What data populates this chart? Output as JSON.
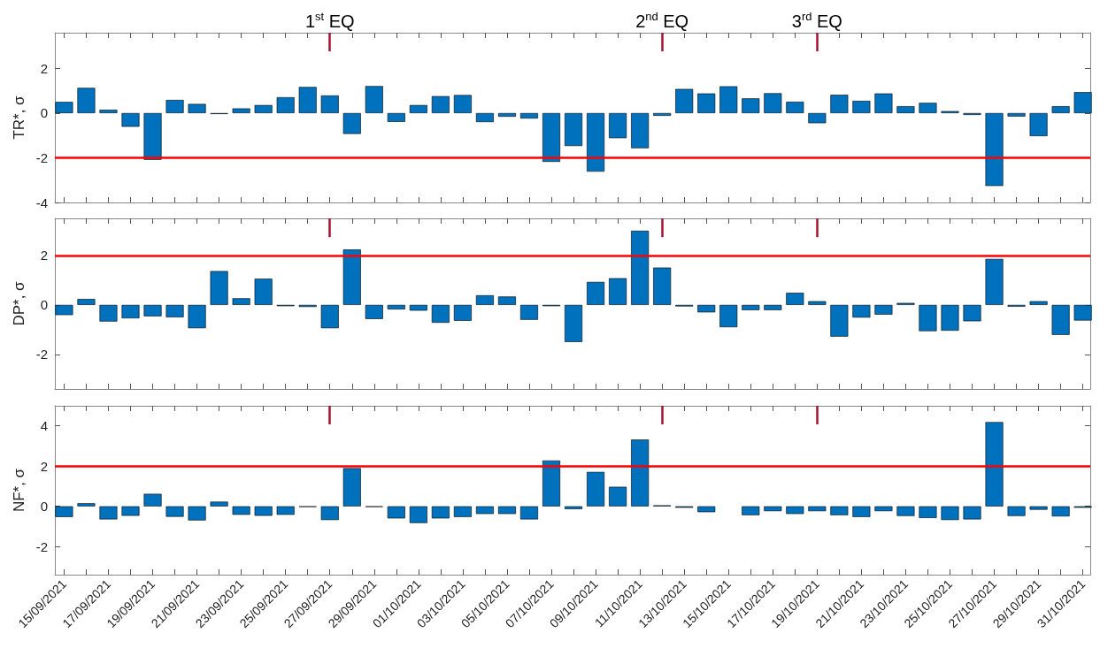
{
  "chart_data": [
    {
      "type": "bar",
      "ylabel": "TR*, σ",
      "ylim": [
        -4,
        3.6
      ],
      "yticks": [
        -4,
        -2,
        0,
        2
      ],
      "xlim": [
        "2021-09-14T14:00",
        "2021-10-31T08:00"
      ],
      "tick_labels": "y",
      "x": [
        "2021-09-15",
        "2021-09-16",
        "2021-09-17",
        "2021-09-18",
        "2021-09-19",
        "2021-09-20",
        "2021-09-21",
        "2021-09-22",
        "2021-09-23",
        "2021-09-24",
        "2021-09-25",
        "2021-09-26",
        "2021-09-27",
        "2021-09-28",
        "2021-09-29",
        "2021-09-30",
        "2021-10-01",
        "2021-10-02",
        "2021-10-03",
        "2021-10-04",
        "2021-10-05",
        "2021-10-06",
        "2021-10-07",
        "2021-10-08",
        "2021-10-09",
        "2021-10-10",
        "2021-10-11",
        "2021-10-12",
        "2021-10-13",
        "2021-10-14",
        "2021-10-15",
        "2021-10-16",
        "2021-10-17",
        "2021-10-18",
        "2021-10-19",
        "2021-10-20",
        "2021-10-21",
        "2021-10-22",
        "2021-10-23",
        "2021-10-24",
        "2021-10-25",
        "2021-10-26",
        "2021-10-27",
        "2021-10-28",
        "2021-10-29",
        "2021-10-30",
        "2021-10-31"
      ],
      "xticks": [
        {
          "value": "2021-09-15",
          "label": null
        },
        {
          "value": "2021-09-16",
          "label": null
        },
        {
          "value": "2021-09-17",
          "label": null
        },
        {
          "value": "2021-09-18",
          "label": null
        },
        {
          "value": "2021-09-19",
          "label": null
        },
        {
          "value": "2021-09-20",
          "label": null
        },
        {
          "value": "2021-09-21",
          "label": null
        },
        {
          "value": "2021-09-22",
          "label": null
        },
        {
          "value": "2021-09-23",
          "label": null
        },
        {
          "value": "2021-09-24",
          "label": null
        },
        {
          "value": "2021-09-25",
          "label": null
        },
        {
          "value": "2021-09-26",
          "label": null
        },
        {
          "value": "2021-09-27",
          "label": null
        },
        {
          "value": "2021-09-28",
          "label": null
        },
        {
          "value": "2021-09-29",
          "label": null
        },
        {
          "value": "2021-09-30",
          "label": null
        },
        {
          "value": "2021-10-01",
          "label": null
        },
        {
          "value": "2021-10-02",
          "label": null
        },
        {
          "value": "2021-10-03",
          "label": null
        },
        {
          "value": "2021-10-04",
          "label": null
        },
        {
          "value": "2021-10-05",
          "label": null
        },
        {
          "value": "2021-10-06",
          "label": null
        },
        {
          "value": "2021-10-07",
          "label": null
        },
        {
          "value": "2021-10-08",
          "label": null
        },
        {
          "value": "2021-10-09",
          "label": null
        },
        {
          "value": "2021-10-10",
          "label": null
        },
        {
          "value": "2021-10-11",
          "label": null
        },
        {
          "value": "2021-10-12",
          "label": null
        },
        {
          "value": "2021-10-13",
          "label": null
        },
        {
          "value": "2021-10-14",
          "label": null
        },
        {
          "value": "2021-10-15",
          "label": null
        },
        {
          "value": "2021-10-16",
          "label": null
        },
        {
          "value": "2021-10-17",
          "label": null
        },
        {
          "value": "2021-10-18",
          "label": null
        },
        {
          "value": "2021-10-19",
          "label": null
        },
        {
          "value": "2021-10-20",
          "label": null
        },
        {
          "value": "2021-10-21",
          "label": null
        },
        {
          "value": "2021-10-22",
          "label": null
        },
        {
          "value": "2021-10-23",
          "label": null
        },
        {
          "value": "2021-10-24",
          "label": null
        },
        {
          "value": "2021-10-25",
          "label": null
        },
        {
          "value": "2021-10-26",
          "label": null
        },
        {
          "value": "2021-10-27",
          "label": null
        },
        {
          "value": "2021-10-28",
          "label": null
        },
        {
          "value": "2021-10-29",
          "label": null
        },
        {
          "value": "2021-10-30",
          "label": null
        },
        {
          "value": "2021-10-31",
          "label": null
        }
      ],
      "series": [
        {
          "color": "#0072bd",
          "values": [
            0.5,
            1.13,
            0.15,
            -0.61,
            -2.09,
            0.59,
            0.41,
            -0.04,
            0.21,
            0.36,
            0.71,
            1.17,
            0.79,
            -0.93,
            1.21,
            -0.39,
            0.36,
            0.76,
            0.81,
            -0.4,
            -0.16,
            -0.24,
            -2.18,
            -1.47,
            -2.62,
            -1.12,
            -1.57,
            -0.12,
            1.08,
            0.88,
            1.2,
            0.66,
            0.89,
            0.51,
            -0.45,
            0.82,
            0.55,
            0.88,
            0.31,
            0.46,
            0.09,
            -0.08,
            -3.26,
            -0.15,
            -1.03,
            0.31,
            0.94
          ]
        }
      ],
      "ref_lines": [
        {
          "axis": "y",
          "value": -2,
          "color": "#ff0000"
        },
        {
          "axis": "x",
          "value": "2021-09-27",
          "label": "1$^{st}$ EQ",
          "color": "#a2142f"
        },
        {
          "axis": "x",
          "value": "2021-10-12",
          "label": "2$^{nd}$ EQ",
          "color": "#a2142f"
        },
        {
          "axis": "x",
          "value": "2021-10-19",
          "label": "3$^{rd}$ EQ",
          "color": "#a2142f"
        }
      ]
    },
    {
      "type": "bar",
      "ylabel": "DP*, σ",
      "ylim": [
        -3.4,
        3.5
      ],
      "yticks": [
        -2,
        0,
        2
      ],
      "xlim": [
        "2021-09-14T14:00",
        "2021-10-31T08:00"
      ],
      "tick_labels": "y",
      "x": [
        "2021-09-15",
        "2021-09-16",
        "2021-09-17",
        "2021-09-18",
        "2021-09-19",
        "2021-09-20",
        "2021-09-21",
        "2021-09-22",
        "2021-09-23",
        "2021-09-24",
        "2021-09-25",
        "2021-09-26",
        "2021-09-27",
        "2021-09-28",
        "2021-09-29",
        "2021-09-30",
        "2021-10-01",
        "2021-10-02",
        "2021-10-03",
        "2021-10-04",
        "2021-10-05",
        "2021-10-06",
        "2021-10-07",
        "2021-10-08",
        "2021-10-09",
        "2021-10-10",
        "2021-10-11",
        "2021-10-12",
        "2021-10-13",
        "2021-10-14",
        "2021-10-15",
        "2021-10-16",
        "2021-10-17",
        "2021-10-18",
        "2021-10-19",
        "2021-10-20",
        "2021-10-21",
        "2021-10-22",
        "2021-10-23",
        "2021-10-24",
        "2021-10-25",
        "2021-10-26",
        "2021-10-27",
        "2021-10-28",
        "2021-10-29",
        "2021-10-30",
        "2021-10-31"
      ],
      "xticks": [
        {
          "value": "2021-09-15",
          "label": null
        },
        {
          "value": "2021-09-16",
          "label": null
        },
        {
          "value": "2021-09-17",
          "label": null
        },
        {
          "value": "2021-09-18",
          "label": null
        },
        {
          "value": "2021-09-19",
          "label": null
        },
        {
          "value": "2021-09-20",
          "label": null
        },
        {
          "value": "2021-09-21",
          "label": null
        },
        {
          "value": "2021-09-22",
          "label": null
        },
        {
          "value": "2021-09-23",
          "label": null
        },
        {
          "value": "2021-09-24",
          "label": null
        },
        {
          "value": "2021-09-25",
          "label": null
        },
        {
          "value": "2021-09-26",
          "label": null
        },
        {
          "value": "2021-09-27",
          "label": null
        },
        {
          "value": "2021-09-28",
          "label": null
        },
        {
          "value": "2021-09-29",
          "label": null
        },
        {
          "value": "2021-09-30",
          "label": null
        },
        {
          "value": "2021-10-01",
          "label": null
        },
        {
          "value": "2021-10-02",
          "label": null
        },
        {
          "value": "2021-10-03",
          "label": null
        },
        {
          "value": "2021-10-04",
          "label": null
        },
        {
          "value": "2021-10-05",
          "label": null
        },
        {
          "value": "2021-10-06",
          "label": null
        },
        {
          "value": "2021-10-07",
          "label": null
        },
        {
          "value": "2021-10-08",
          "label": null
        },
        {
          "value": "2021-10-09",
          "label": null
        },
        {
          "value": "2021-10-10",
          "label": null
        },
        {
          "value": "2021-10-11",
          "label": null
        },
        {
          "value": "2021-10-12",
          "label": null
        },
        {
          "value": "2021-10-13",
          "label": null
        },
        {
          "value": "2021-10-14",
          "label": null
        },
        {
          "value": "2021-10-15",
          "label": null
        },
        {
          "value": "2021-10-16",
          "label": null
        },
        {
          "value": "2021-10-17",
          "label": null
        },
        {
          "value": "2021-10-18",
          "label": null
        },
        {
          "value": "2021-10-19",
          "label": null
        },
        {
          "value": "2021-10-20",
          "label": null
        },
        {
          "value": "2021-10-21",
          "label": null
        },
        {
          "value": "2021-10-22",
          "label": null
        },
        {
          "value": "2021-10-23",
          "label": null
        },
        {
          "value": "2021-10-24",
          "label": null
        },
        {
          "value": "2021-10-25",
          "label": null
        },
        {
          "value": "2021-10-26",
          "label": null
        },
        {
          "value": "2021-10-27",
          "label": null
        },
        {
          "value": "2021-10-28",
          "label": null
        },
        {
          "value": "2021-10-29",
          "label": null
        },
        {
          "value": "2021-10-30",
          "label": null
        },
        {
          "value": "2021-10-31",
          "label": null
        }
      ],
      "series": [
        {
          "color": "#0072bd",
          "values": [
            -0.41,
            0.24,
            -0.67,
            -0.54,
            -0.46,
            -0.5,
            -0.94,
            1.37,
            0.27,
            1.06,
            -0.05,
            -0.08,
            -0.94,
            2.24,
            -0.57,
            -0.18,
            -0.23,
            -0.72,
            -0.64,
            0.39,
            0.34,
            -0.6,
            -0.05,
            -1.5,
            0.93,
            1.08,
            3.0,
            1.51,
            -0.06,
            -0.3,
            -0.9,
            -0.21,
            -0.21,
            0.49,
            0.15,
            -1.28,
            -0.51,
            -0.39,
            0.08,
            -1.06,
            -1.04,
            -0.66,
            1.86,
            -0.07,
            0.15,
            -1.21,
            -0.63
          ]
        }
      ],
      "ref_lines": [
        {
          "axis": "y",
          "value": 2,
          "color": "#ff0000"
        },
        {
          "axis": "x",
          "value": "2021-09-27",
          "color": "#a2142f"
        },
        {
          "axis": "x",
          "value": "2021-10-12",
          "color": "#a2142f"
        },
        {
          "axis": "x",
          "value": "2021-10-19",
          "color": "#a2142f"
        }
      ]
    },
    {
      "type": "bar",
      "ylabel": "NF*, σ",
      "ylim": [
        -3.4,
        5
      ],
      "yticks": [
        -2,
        0,
        2,
        4
      ],
      "xlim": [
        "2021-09-14T14:00",
        "2021-10-31T08:00"
      ],
      "x": [
        "2021-09-15",
        "2021-09-16",
        "2021-09-17",
        "2021-09-18",
        "2021-09-19",
        "2021-09-20",
        "2021-09-21",
        "2021-09-22",
        "2021-09-23",
        "2021-09-24",
        "2021-09-25",
        "2021-09-26",
        "2021-09-27",
        "2021-09-28",
        "2021-09-29",
        "2021-09-30",
        "2021-10-01",
        "2021-10-02",
        "2021-10-03",
        "2021-10-04",
        "2021-10-05",
        "2021-10-06",
        "2021-10-07",
        "2021-10-08",
        "2021-10-09",
        "2021-10-10",
        "2021-10-11",
        "2021-10-12",
        "2021-10-13",
        "2021-10-14",
        "2021-10-15",
        "2021-10-16",
        "2021-10-17",
        "2021-10-18",
        "2021-10-19",
        "2021-10-20",
        "2021-10-21",
        "2021-10-22",
        "2021-10-23",
        "2021-10-24",
        "2021-10-25",
        "2021-10-26",
        "2021-10-27",
        "2021-10-28",
        "2021-10-29",
        "2021-10-30",
        "2021-10-31"
      ],
      "xticks": [
        {
          "value": "2021-09-15",
          "label": "15/09/2021"
        },
        {
          "value": "2021-09-16",
          "label": null
        },
        {
          "value": "2021-09-17",
          "label": "17/09/2021"
        },
        {
          "value": "2021-09-18",
          "label": null
        },
        {
          "value": "2021-09-19",
          "label": "19/09/2021"
        },
        {
          "value": "2021-09-20",
          "label": null
        },
        {
          "value": "2021-09-21",
          "label": "21/09/2021"
        },
        {
          "value": "2021-09-22",
          "label": null
        },
        {
          "value": "2021-09-23",
          "label": "23/09/2021"
        },
        {
          "value": "2021-09-24",
          "label": null
        },
        {
          "value": "2021-09-25",
          "label": "25/09/2021"
        },
        {
          "value": "2021-09-26",
          "label": null
        },
        {
          "value": "2021-09-27",
          "label": "27/09/2021"
        },
        {
          "value": "2021-09-28",
          "label": null
        },
        {
          "value": "2021-09-29",
          "label": "29/09/2021"
        },
        {
          "value": "2021-09-30",
          "label": null
        },
        {
          "value": "2021-10-01",
          "label": "01/10/2021"
        },
        {
          "value": "2021-10-02",
          "label": null
        },
        {
          "value": "2021-10-03",
          "label": "03/10/2021"
        },
        {
          "value": "2021-10-04",
          "label": null
        },
        {
          "value": "2021-10-05",
          "label": "05/10/2021"
        },
        {
          "value": "2021-10-06",
          "label": null
        },
        {
          "value": "2021-10-07",
          "label": "07/10/2021"
        },
        {
          "value": "2021-10-08",
          "label": null
        },
        {
          "value": "2021-10-09",
          "label": "09/10/2021"
        },
        {
          "value": "2021-10-10",
          "label": null
        },
        {
          "value": "2021-10-11",
          "label": "11/10/2021"
        },
        {
          "value": "2021-10-12",
          "label": null
        },
        {
          "value": "2021-10-13",
          "label": "13/10/2021"
        },
        {
          "value": "2021-10-14",
          "label": null
        },
        {
          "value": "2021-10-15",
          "label": "15/10/2021"
        },
        {
          "value": "2021-10-16",
          "label": null
        },
        {
          "value": "2021-10-17",
          "label": "17/10/2021"
        },
        {
          "value": "2021-10-18",
          "label": null
        },
        {
          "value": "2021-10-19",
          "label": "19/10/2021"
        },
        {
          "value": "2021-10-20",
          "label": null
        },
        {
          "value": "2021-10-21",
          "label": "21/10/2021"
        },
        {
          "value": "2021-10-22",
          "label": null
        },
        {
          "value": "2021-10-23",
          "label": "23/10/2021"
        },
        {
          "value": "2021-10-24",
          "label": null
        },
        {
          "value": "2021-10-25",
          "label": "25/10/2021"
        },
        {
          "value": "2021-10-26",
          "label": null
        },
        {
          "value": "2021-10-27",
          "label": "27/10/2021"
        },
        {
          "value": "2021-10-28",
          "label": null
        },
        {
          "value": "2021-10-29",
          "label": "29/10/2021"
        },
        {
          "value": "2021-10-30",
          "label": null
        },
        {
          "value": "2021-10-31",
          "label": "31/10/2021"
        }
      ],
      "series": [
        {
          "color": "#0072bd",
          "values": [
            -0.53,
            0.15,
            -0.65,
            -0.47,
            0.62,
            -0.52,
            -0.7,
            0.23,
            -0.42,
            -0.47,
            -0.42,
            -0.03,
            -0.68,
            1.9,
            -0.03,
            -0.6,
            -0.83,
            -0.6,
            -0.53,
            -0.38,
            -0.38,
            -0.65,
            2.28,
            -0.14,
            1.71,
            0.97,
            3.32,
            0.05,
            -0.07,
            -0.29,
            0.0,
            -0.44,
            -0.24,
            -0.38,
            -0.24,
            -0.44,
            -0.53,
            -0.24,
            -0.48,
            -0.58,
            -0.68,
            -0.65,
            4.19,
            -0.48,
            -0.17,
            -0.5,
            -0.07
          ]
        }
      ],
      "ref_lines": [
        {
          "axis": "y",
          "value": 2,
          "color": "#ff0000"
        },
        {
          "axis": "x",
          "value": "2021-09-27",
          "color": "#a2142f"
        },
        {
          "axis": "x",
          "value": "2021-10-12",
          "color": "#a2142f"
        },
        {
          "axis": "x",
          "value": "2021-10-19",
          "color": "#a2142f"
        }
      ]
    }
  ]
}
